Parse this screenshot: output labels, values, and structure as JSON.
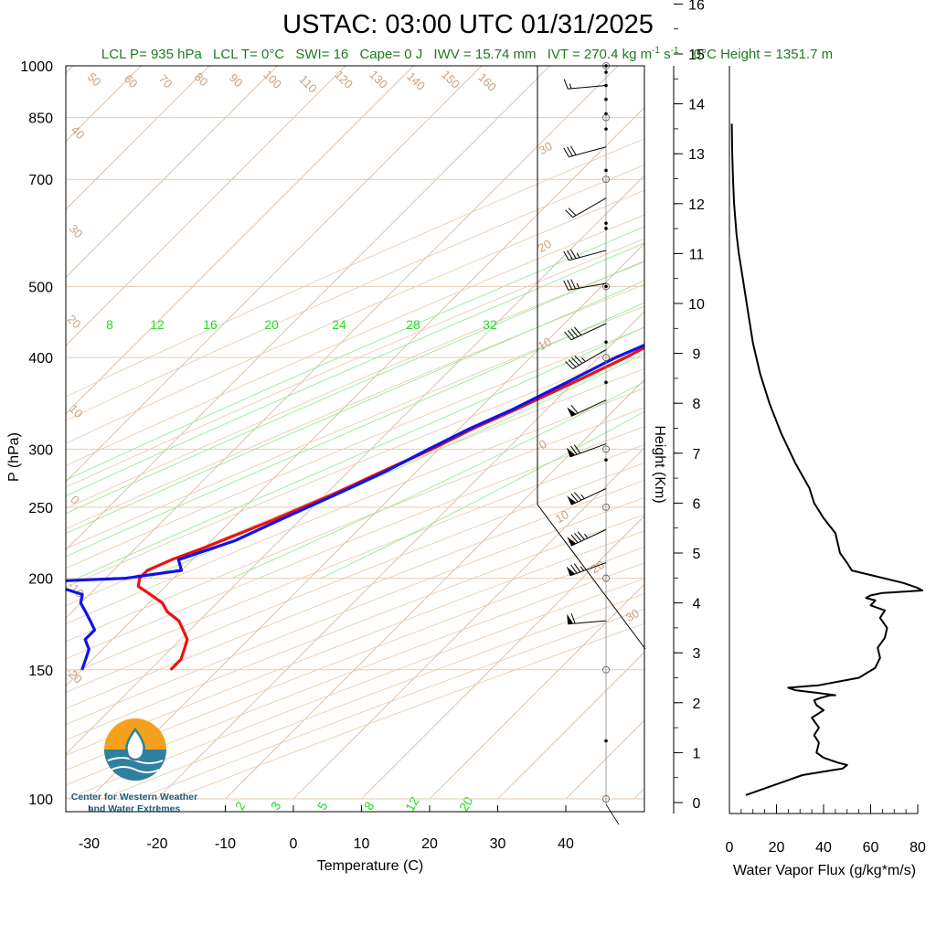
{
  "title": "USTAC: 03:00 UTC 01/31/2025",
  "indices": {
    "lcl_p": "LCL P= 935 hPa",
    "lcl_t": "LCL T= 0°C",
    "swi": "SWI= 16",
    "cape": "Cape= 0 J",
    "iwv": "IWV = 15.74 mm",
    "ivt": "IVT = 270.4 kg m",
    "ivt_exp1": "-1",
    "ivt_mid": " s",
    "ivt_exp2": "-1",
    "zero_height": "0°C Height = 1351.7 m"
  },
  "logo": {
    "line1": "Center for Western Weather",
    "line2": "and Water Extremes"
  },
  "chart_data": [
    {
      "type": "line",
      "subtype": "skew-T log-P sounding",
      "xlabel": "Temperature (C)",
      "ylabel": "P (hPa)",
      "xlim": [
        -34,
        52
      ],
      "ylim": [
        1050,
        100
      ],
      "y_scale": "log",
      "x_ticks": [
        -30,
        -20,
        -10,
        0,
        10,
        20,
        30,
        40
      ],
      "y_ticks": [
        100,
        150,
        200,
        250,
        300,
        400,
        500,
        700,
        850,
        1000
      ],
      "series": [
        {
          "name": "Temperature",
          "color": "#ee1111",
          "p": [
            1000,
            970,
            950,
            925,
            900,
            880,
            850,
            820,
            800,
            790,
            775,
            760,
            740,
            720,
            700,
            680,
            660,
            640,
            620,
            600,
            580,
            560,
            550,
            540,
            525,
            500,
            470,
            440,
            420,
            400,
            370,
            340,
            320,
            300,
            280,
            260,
            240,
            220,
            212,
            205,
            200,
            195,
            190,
            185,
            180,
            175,
            170,
            165,
            160,
            155,
            150
          ],
          "t": [
            6.5,
            6.5,
            6.0,
            5.5,
            5.0,
            4.0,
            3.0,
            2.0,
            0.5,
            3.5,
            8.0,
            8.5,
            8.0,
            6.5,
            5.0,
            4.0,
            2.5,
            1.0,
            -0.5,
            -1.5,
            -2.0,
            -1.0,
            -1.5,
            -2.0,
            -3.0,
            -5.0,
            -7.5,
            -11,
            -14,
            -16,
            -20,
            -24.5,
            -28,
            -31,
            -35,
            -39,
            -44,
            -50,
            -53,
            -55,
            -55,
            -54,
            -51,
            -48,
            -46,
            -43,
            -41,
            -39,
            -38,
            -37,
            -37
          ]
        },
        {
          "name": "Dewpoint",
          "color": "#1111ee",
          "p": [
            1000,
            980,
            960,
            940,
            920,
            900,
            870,
            850,
            830,
            810,
            795,
            790,
            785,
            780,
            770,
            750,
            720,
            700,
            680,
            650,
            630,
            610,
            600,
            580,
            560,
            545,
            530,
            510,
            490,
            470,
            450,
            430,
            400,
            370,
            340,
            320,
            300,
            280,
            260,
            240,
            225,
            212,
            205,
            200,
            198,
            197,
            195,
            190,
            185,
            180,
            175,
            170,
            165,
            160,
            155,
            150
          ],
          "t": [
            1.5,
            2.0,
            1.0,
            0.5,
            0.5,
            1.0,
            0.0,
            -1.0,
            -1.0,
            -1.0,
            -2.0,
            -10,
            -15,
            -10,
            -2.0,
            -2.0,
            -2.5,
            -3.0,
            -3.5,
            -4.0,
            -3.5,
            -4.0,
            -2.0,
            -1.0,
            -1.5,
            -1.5,
            -2.5,
            -6.5,
            -8.0,
            -9.0,
            -11,
            -13,
            -17.5,
            -21,
            -25,
            -28.5,
            -31.5,
            -34.5,
            -38.5,
            -43,
            -46.5,
            -52,
            -50,
            -57,
            -68,
            -73,
            -66,
            -61,
            -60,
            -58,
            -56,
            -54,
            -54,
            -52,
            -51,
            -50
          ]
        }
      ],
      "dry_adiabat_labels": [
        "50",
        "60",
        "70",
        "80",
        "90",
        "100",
        "110",
        "120",
        "130",
        "140",
        "150",
        "160",
        "40",
        "30",
        "20",
        "10",
        "0",
        "-10",
        "-20"
      ],
      "moist_adiabat_labels": [
        "30",
        "20",
        "10",
        "0",
        "10",
        "20",
        "30"
      ],
      "mixing_ratio_labels_top": [
        "8",
        "12",
        "16",
        "20",
        "24",
        "28",
        "32"
      ],
      "mixing_ratio_labels_bottom": [
        "2",
        "3",
        "5",
        "8",
        "12",
        "20"
      ],
      "wind_barbs": [
        {
          "p": 175,
          "dir": 265,
          "kt": 60
        },
        {
          "p": 210,
          "dir": 250,
          "kt": 75
        },
        {
          "p": 233,
          "dir": 245,
          "kt": 85
        },
        {
          "p": 265,
          "dir": 245,
          "kt": 75
        },
        {
          "p": 305,
          "dir": 250,
          "kt": 70
        },
        {
          "p": 350,
          "dir": 245,
          "kt": 60
        },
        {
          "p": 410,
          "dir": 240,
          "kt": 45
        },
        {
          "p": 445,
          "dir": 245,
          "kt": 40
        },
        {
          "p": 505,
          "dir": 260,
          "kt": 35
        },
        {
          "p": 560,
          "dir": 255,
          "kt": 35
        },
        {
          "p": 660,
          "dir": 240,
          "kt": 20
        },
        {
          "p": 775,
          "dir": 255,
          "kt": 30
        },
        {
          "p": 940,
          "dir": 265,
          "kt": 15
        }
      ]
    },
    {
      "type": "line",
      "xlabel": "Water Vapor Flux (g/kg*m/s)",
      "ylabel": "Height (Km)",
      "xlim": [
        0,
        80
      ],
      "ylim": [
        -0.2,
        16.4
      ],
      "x_ticks": [
        0,
        20,
        40,
        60,
        80
      ],
      "y_ticks": [
        0,
        1,
        2,
        3,
        4,
        5,
        6,
        7,
        8,
        9,
        10,
        11,
        12,
        13,
        14,
        15,
        16
      ],
      "series": [
        {
          "name": "Water Vapor Flux",
          "color": "#000000",
          "x": [
            7,
            25,
            31,
            40,
            48,
            50,
            46,
            40,
            37,
            38,
            36,
            38,
            35,
            40,
            37,
            36,
            39,
            43,
            45,
            37,
            28,
            25,
            38,
            55,
            62,
            64,
            63,
            66,
            67,
            64,
            66,
            60,
            62,
            58,
            60,
            65,
            82,
            80,
            74,
            52,
            50,
            47,
            45,
            40,
            36,
            34,
            28,
            22,
            17,
            13,
            10,
            8,
            6,
            4,
            3,
            2.5,
            2,
            1.5,
            1.2,
            1
          ],
          "h": [
            0.15,
            0.45,
            0.55,
            0.62,
            0.68,
            0.75,
            0.8,
            0.9,
            1.0,
            1.2,
            1.35,
            1.5,
            1.7,
            1.85,
            1.95,
            2.05,
            2.1,
            2.15,
            2.15,
            2.2,
            2.25,
            2.3,
            2.35,
            2.5,
            2.7,
            2.9,
            3.1,
            3.3,
            3.5,
            3.7,
            3.85,
            3.95,
            4.05,
            4.1,
            4.15,
            4.2,
            4.25,
            4.3,
            4.4,
            4.65,
            4.8,
            5.0,
            5.4,
            5.7,
            6.0,
            6.3,
            6.8,
            7.4,
            8.0,
            8.6,
            9.2,
            9.8,
            10.4,
            11.0,
            11.4,
            11.7,
            12.0,
            12.5,
            13.0,
            13.6
          ]
        }
      ]
    }
  ]
}
